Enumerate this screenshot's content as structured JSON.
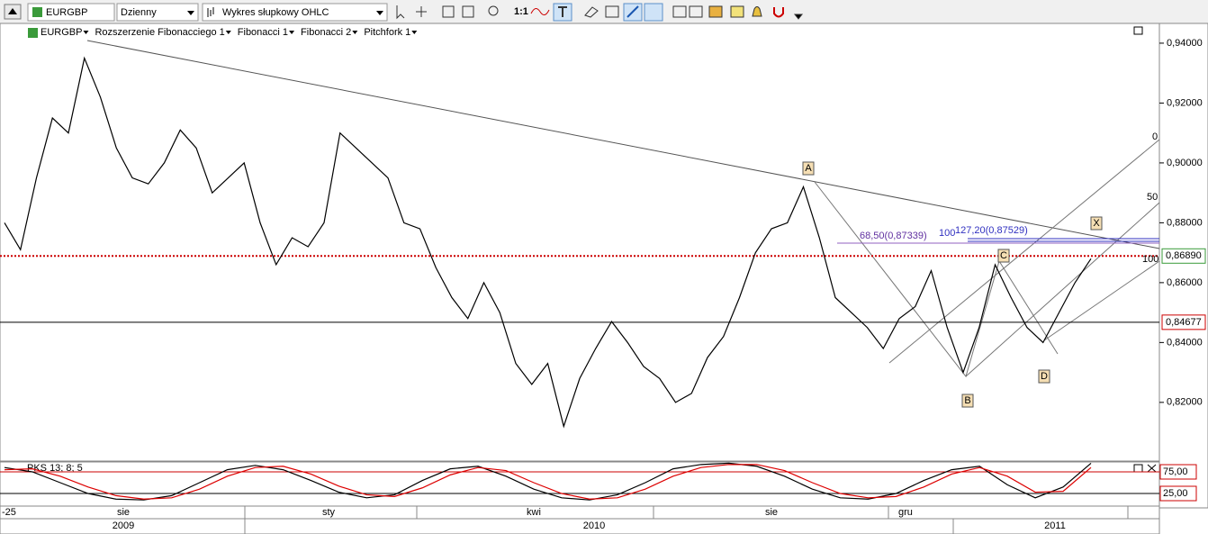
{
  "toolbar": {
    "symbol": "EURGBP",
    "period": "Dzienny",
    "chart_style": "Wykres słupkowy OHLC",
    "zoom": "1:1"
  },
  "legend": [
    "EURGBP",
    "Rozszerzenie Fibonacciego 1",
    "Fibonacci 1",
    "Fibonacci 2",
    "Pitchfork 1"
  ],
  "chart_data": [
    {
      "type": "line",
      "color": "#000000",
      "values": [
        0.88,
        0.871,
        0.895,
        0.915,
        0.91,
        0.935,
        0.922,
        0.905,
        0.895,
        0.893,
        0.9,
        0.911,
        0.905,
        0.89,
        0.895,
        0.9,
        0.88,
        0.866,
        0.875,
        0.872,
        0.88,
        0.91,
        0.905,
        0.9,
        0.895,
        0.88,
        0.878,
        0.865,
        0.855,
        0.848,
        0.86,
        0.85,
        0.833,
        0.826,
        0.833,
        0.812,
        0.828,
        0.838,
        0.847,
        0.84,
        0.832,
        0.828,
        0.82,
        0.823,
        0.835,
        0.842,
        0.855,
        0.87,
        0.878,
        0.88,
        0.892,
        0.875,
        0.855,
        0.85,
        0.845,
        0.838,
        0.848,
        0.852,
        0.864,
        0.845,
        0.83,
        0.845,
        0.866,
        0.855,
        0.845,
        0.84,
        0.85,
        0.86,
        0.868
      ],
      "ylim": [
        0.801,
        0.946
      ],
      "yticks": [
        {
          "value": 0.94,
          "label": "0,94000"
        },
        {
          "value": 0.92,
          "label": "0,92000"
        },
        {
          "value": 0.9,
          "label": "0,90000"
        },
        {
          "value": 0.88,
          "label": "0,88000"
        },
        {
          "value": 0.86,
          "label": "0,86000"
        },
        {
          "value": 0.84,
          "label": "0,84000"
        },
        {
          "value": 0.82,
          "label": "0,82000"
        }
      ],
      "levels": [
        {
          "value": 0.8689,
          "label": "0,86890",
          "color": "#cc0000",
          "style": "dotted"
        },
        {
          "value": 0.84677,
          "label": "0,84677",
          "color": "#000000",
          "style": "solid"
        }
      ],
      "fib_labels": [
        "68,50(0,87339)",
        "100",
        "127,20(0,87529)"
      ],
      "pitchfork_labels": [
        "0",
        "50",
        "100"
      ],
      "points": [
        "A",
        "B",
        "C",
        "D",
        "X"
      ]
    },
    {
      "type": "line",
      "title": "PKS 13; 8; 5",
      "series": [
        {
          "color": "#000000",
          "values": [
            85,
            75,
            50,
            25,
            12,
            10,
            20,
            50,
            80,
            90,
            80,
            55,
            28,
            15,
            22,
            55,
            82,
            88,
            65,
            35,
            15,
            10,
            22,
            50,
            82,
            92,
            95,
            88,
            65,
            35,
            15,
            12,
            25,
            55,
            80,
            88,
            45,
            15,
            40,
            95
          ]
        },
        {
          "color": "#dd0000",
          "values": [
            80,
            82,
            65,
            40,
            20,
            12,
            15,
            35,
            65,
            85,
            88,
            70,
            42,
            22,
            18,
            38,
            68,
            85,
            78,
            50,
            25,
            12,
            15,
            35,
            65,
            85,
            92,
            92,
            78,
            50,
            25,
            15,
            18,
            40,
            70,
            85,
            65,
            28,
            30,
            85
          ]
        }
      ],
      "ylim": [
        0,
        100
      ],
      "yticks": [
        {
          "value": 75,
          "label": "75,00"
        },
        {
          "value": 25,
          "label": "25,00"
        }
      ]
    }
  ],
  "time_axis": {
    "start": "-25",
    "months": [
      "sie",
      "sty",
      "kwi",
      "sie",
      "gru"
    ],
    "years": [
      "2009",
      "2010",
      "2011"
    ]
  }
}
